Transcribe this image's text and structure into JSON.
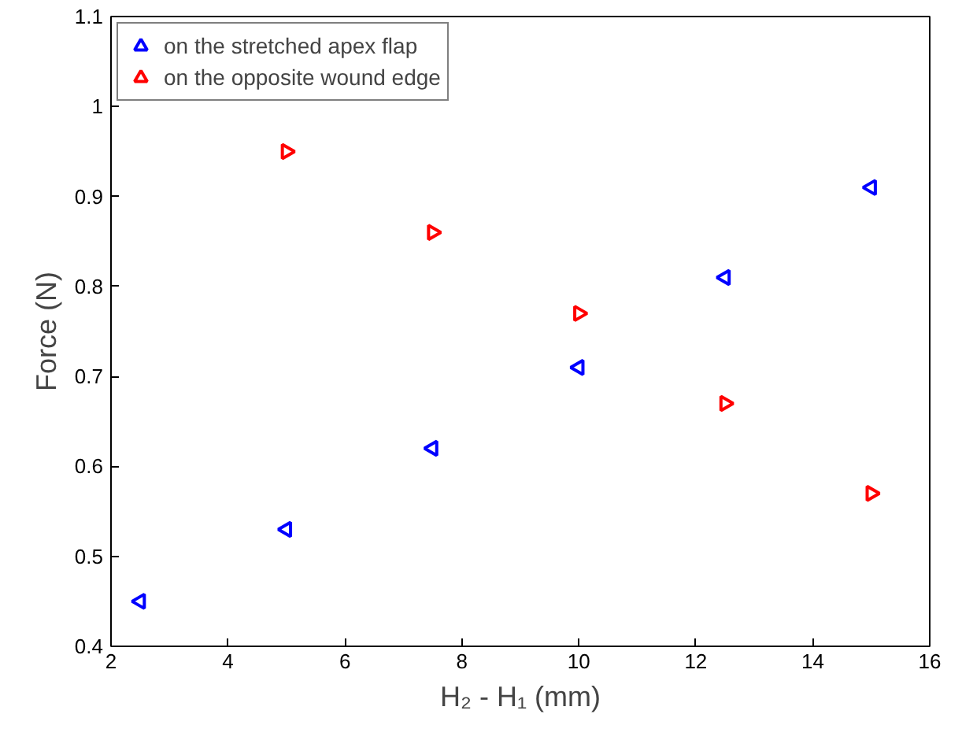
{
  "chart_data": {
    "type": "scatter",
    "xlabel": "H₂ - H₁ (mm)",
    "ylabel": "Force (N)",
    "xlim": [
      2,
      16
    ],
    "xticks": [
      2,
      4,
      6,
      8,
      10,
      12,
      14,
      16
    ],
    "ylim": [
      0.4,
      1.1
    ],
    "yticks": [
      0.4,
      0.5,
      0.6,
      0.7,
      0.8,
      0.9,
      1,
      1.1
    ],
    "grid": false,
    "legend": "top left",
    "marker": "triangle",
    "series": [
      {
        "name": "on the stretched apex flap",
        "color": "#0000ff",
        "x": [
          2.5,
          5,
          7.5,
          10,
          12.5,
          15
        ],
        "values": [
          0.45,
          0.53,
          0.62,
          0.71,
          0.81,
          0.91
        ]
      },
      {
        "name": "on the opposite wound edge",
        "color": "#ff0000",
        "x": [
          5,
          7.5,
          10,
          12.5,
          15
        ],
        "values": [
          0.95,
          0.86,
          0.77,
          0.67,
          0.57
        ]
      }
    ]
  }
}
